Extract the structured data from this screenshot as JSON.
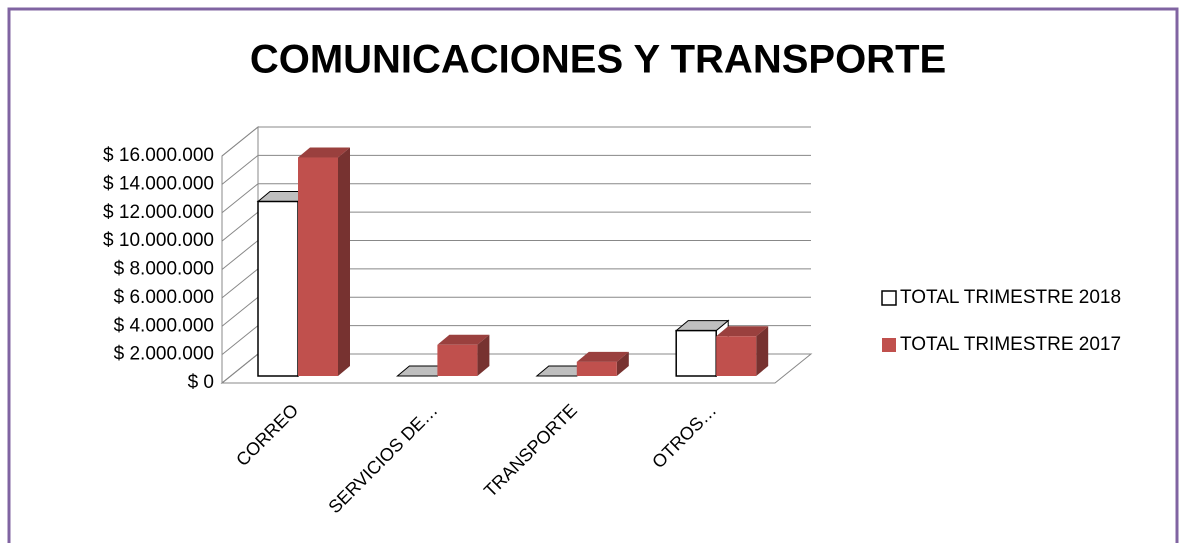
{
  "chart_data": {
    "type": "bar3d",
    "title": "COMUNICACIONES Y TRANSPORTE",
    "categories": [
      "CORREO",
      "SERVICIOS DE…",
      "TRANSPORTE",
      "OTROS…"
    ],
    "series": [
      {
        "name": "TOTAL TRIMESTRE 2018",
        "color": "#ffffff",
        "values": [
          12300000,
          0,
          0,
          3200000
        ]
      },
      {
        "name": "TOTAL TRIMESTRE 2017",
        "color": "#c0504d",
        "values": [
          15400000,
          2200000,
          1000000,
          2800000
        ]
      }
    ],
    "ylim": [
      0,
      16000000
    ],
    "yticks": [
      {
        "value": 0,
        "label": "$ 0"
      },
      {
        "value": 2000000,
        "label": "$ 2.000.000"
      },
      {
        "value": 4000000,
        "label": "$ 4.000.000"
      },
      {
        "value": 6000000,
        "label": "$ 6.000.000"
      },
      {
        "value": 8000000,
        "label": "$ 8.000.000"
      },
      {
        "value": 10000000,
        "label": "$ 10.000.000"
      },
      {
        "value": 12000000,
        "label": "$ 12.000.000"
      },
      {
        "value": 14000000,
        "label": "$ 14.000.000"
      },
      {
        "value": 16000000,
        "label": "$ 16.000.000"
      }
    ],
    "grid": true,
    "legend": "right"
  }
}
